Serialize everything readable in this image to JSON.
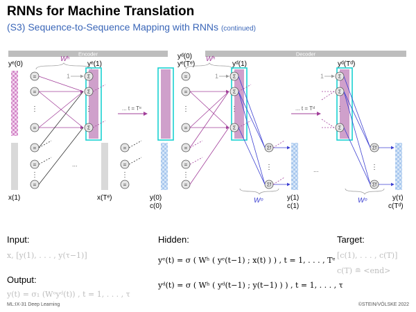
{
  "slide": {
    "title": "RNNs for Machine Translation",
    "subtitle": "(S3) Sequence-to-Sequence Mapping with RNNs",
    "subtitle_note": "(continued)"
  },
  "diagram": {
    "encoder_label": "Encoder",
    "decoder_label": "Decoder",
    "labels": {
      "ye0": "yᵉ(0)",
      "ye1": "yᵉ(1)",
      "yd0": "yᵈ(0)",
      "yeT": "yᵉ(Tᵉ)",
      "yd1": "yᵈ(1)",
      "ydT": "yᵈ(Tᵈ)",
      "wh1": "Wʰ",
      "wh2": "Wʰ",
      "wo1": "Wᵒ",
      "wo2": "Wᵒ",
      "x1": "x(1)",
      "xT": "x(Tᵉ)",
      "y0": "y(0)",
      "c0": "c(0)",
      "y1": "y(1)",
      "c1": "c(1)",
      "ytau": "y(τ)",
      "cT": "c(Tᵈ)",
      "t_eq_te": "... t = Tᵉ",
      "t_eq_td": "... t = Tᵈ",
      "one1": "1",
      "one2": "1",
      "one3": "1",
      "dots1": "...",
      "dots2": "...",
      "dots3": "..."
    }
  },
  "sections": {
    "input_heading": "Input:",
    "input_formula": "x, [y(1), . . . , y(τ−1)]",
    "output_heading": "Output:",
    "output_formula": "y(t) = σ₁ (Wᵒyᵈ(t)) , t = 1, . . . , τ",
    "hidden_heading": "Hidden:",
    "hidden_eq1": "yᵉ(t) = σ ( Wʰ ( yᵉ(t−1) ; x(t) ) ) , t = 1, . . . , Tᵉ",
    "hidden_eq2": "yᵈ(t) = σ ( Wʰ ( yᵈ(t−1) ; y(t−1) ) ) , t = 1, . . . , τ",
    "target_heading": "Target:",
    "target_line1": "[c(1), . . . , c(T)]",
    "target_line2": "c(T) ≘ <end>"
  },
  "footer": {
    "left": "ML:IX-31   Deep Learning",
    "right": "©STEIN/VÖLSKE 2022"
  }
}
